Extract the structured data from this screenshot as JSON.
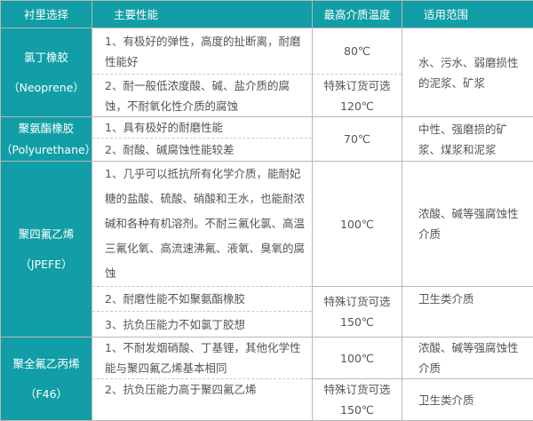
{
  "header": {
    "col1": "衬里选择",
    "col2": "主要性能",
    "col3": "最高介质温度",
    "col4": "适用范围"
  },
  "rows": [
    {
      "name": "氯丁橡胶",
      "name_en": "（Neoprene）",
      "props": [
        "1、有极好的弹性，高度的扯断离，耐磨性能好",
        "2、耐一般低浓度酸、碱、盐介质的腐蚀，不耐氧化性介质的腐蚀"
      ],
      "temp1": "80℃",
      "temp2_line1": "特殊订货可选",
      "temp2_line2": "120℃",
      "range": "水、污水、弱磨损性的泥浆、矿浆"
    },
    {
      "name": "聚氨酯橡胶",
      "name_en": "（Polyurethane）",
      "props": [
        "1、具有极好的耐磨性能",
        "2、耐酸、碱腐蚀性能较差"
      ],
      "temp": "70℃",
      "range": "中性、强磨损的矿浆、煤浆和泥浆"
    },
    {
      "name": "聚四氟乙烯",
      "name_en": "（JPEFE）",
      "props": [
        "1、几乎可以抵抗所有化学介质，能耐妃糖的盐酸、硫酸、硝酸和王水，也能耐浓碱和各种有机溶剂。不耐三氟化氯、高温三氟化氧、高流速沸氟、液氧、臭氧的腐蚀",
        "2、耐磨性能不如聚氨酯橡胶",
        "3、抗负压能力不如氯丁胶想"
      ],
      "temp1": "100℃",
      "temp2_line1": "特殊订货可选",
      "temp2_line2": "150℃",
      "range1": "浓酸、碱等强腐蚀性介质",
      "range2": "卫生类介质"
    },
    {
      "name": "聚全氟乙丙烯",
      "name_en": "（F46）",
      "props": [
        "1、不耐发烟硝酸、丁基锂，其他化学性能与聚四氟乙烯基本相同",
        "2、抗负压能力高于聚四氟乙烯"
      ],
      "temp1": "100℃",
      "temp2_line1": "特殊订货可选",
      "temp2_line2": "150℃",
      "range1": "浓酸、碱等强腐蚀性介质",
      "range2": "卫生类介质"
    }
  ],
  "colors": {
    "accent": "#119ea6",
    "border": "#b8b8b8",
    "text": "#555555"
  }
}
